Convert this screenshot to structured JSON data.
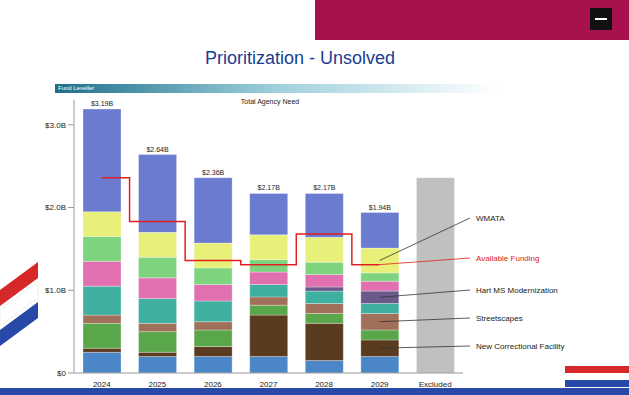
{
  "chart_data": {
    "type": "bar",
    "stacked": true,
    "title": "Prioritization - Unsolved",
    "header": "Fund Leveller",
    "subtitle": "Total Agency Need",
    "categories": [
      "2024",
      "2025",
      "2026",
      "2027",
      "2028",
      "2029",
      "Excluded"
    ],
    "series": [
      {
        "color": "#4a86c8",
        "values": [
          0.25,
          0.2,
          0.2,
          0.2,
          0.15,
          0.2,
          null
        ]
      },
      {
        "name": "New Correctional Facility",
        "color": "#5b3b1f",
        "values": [
          0.05,
          0.05,
          0.12,
          0.5,
          0.45,
          0.2,
          null
        ]
      },
      {
        "color": "#5aa64a",
        "values": [
          0.3,
          0.25,
          0.2,
          0.12,
          0.12,
          0.12,
          null
        ]
      },
      {
        "name": "Streetscapes",
        "color": "#a0705a",
        "values": [
          0.1,
          0.1,
          0.1,
          0.1,
          0.12,
          0.2,
          null
        ]
      },
      {
        "color": "#3fb0a0",
        "values": [
          0.35,
          0.3,
          0.25,
          0.15,
          0.15,
          0.12,
          null
        ]
      },
      {
        "name": "Hart MS Modernization",
        "color": "#6a5a8a",
        "values": [
          0,
          0,
          0,
          0,
          0.05,
          0.15,
          null
        ]
      },
      {
        "color": "#e070b0",
        "values": [
          0.3,
          0.25,
          0.2,
          0.15,
          0.15,
          0.12,
          null
        ]
      },
      {
        "color": "#7ed37e",
        "values": [
          0.3,
          0.25,
          0.2,
          0.15,
          0.15,
          0.1,
          null
        ]
      },
      {
        "name": "WMATA",
        "color": "#e8f07a",
        "values": [
          0.3,
          0.3,
          0.3,
          0.3,
          0.3,
          0.3,
          null
        ]
      },
      {
        "color": "#6a7bd0",
        "values": [
          1.24,
          0.94,
          0.79,
          0.5,
          0.53,
          0.43,
          null
        ]
      },
      {
        "color": "#c0c0c0",
        "values": [
          null,
          null,
          null,
          null,
          null,
          null,
          2.36
        ]
      },
      {
        "name": "Available Funding",
        "type": "line",
        "line_style": "step",
        "color": "#e02020",
        "values": [
          2.36,
          1.83,
          1.36,
          1.31,
          1.68,
          1.31,
          null
        ]
      }
    ],
    "totals": [
      3.19,
      2.64,
      2.36,
      2.17,
      2.17,
      1.94,
      null
    ],
    "total_labels": [
      "$3.19B",
      "$2.64B",
      "$2.36B",
      "$2.17B",
      "$2.17B",
      "$1.94B",
      null
    ],
    "ylim": [
      0,
      3.3
    ],
    "yticks": [
      {
        "value": 0,
        "label": "$0"
      },
      {
        "value": 1,
        "label": "$1.0B"
      },
      {
        "value": 2,
        "label": "$2.0B"
      },
      {
        "value": 3,
        "label": "$3.0B"
      }
    ],
    "grid": false
  }
}
